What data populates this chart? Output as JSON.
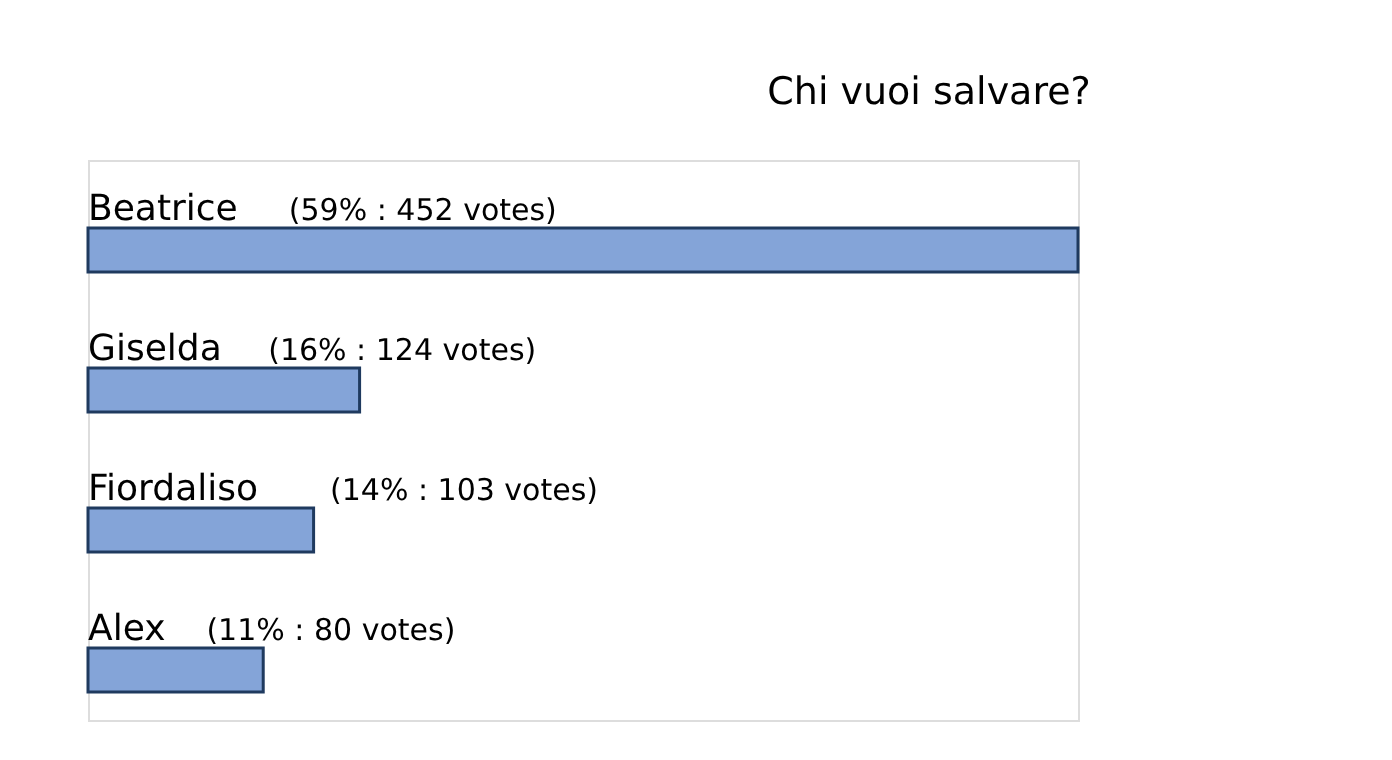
{
  "chart_data": {
    "type": "bar",
    "orientation": "horizontal",
    "title": "Chi vuoi salvare?",
    "categories": [
      "Beatrice",
      "Giselda",
      "Fiordaliso",
      "Alex"
    ],
    "values": [
      452,
      124,
      103,
      80
    ],
    "value_labels": [
      "(59% : 452 votes)",
      "(16% : 124 votes)",
      "(14% : 103 votes)",
      "(11% : 80 votes)"
    ],
    "color": "#84a4d8"
  }
}
